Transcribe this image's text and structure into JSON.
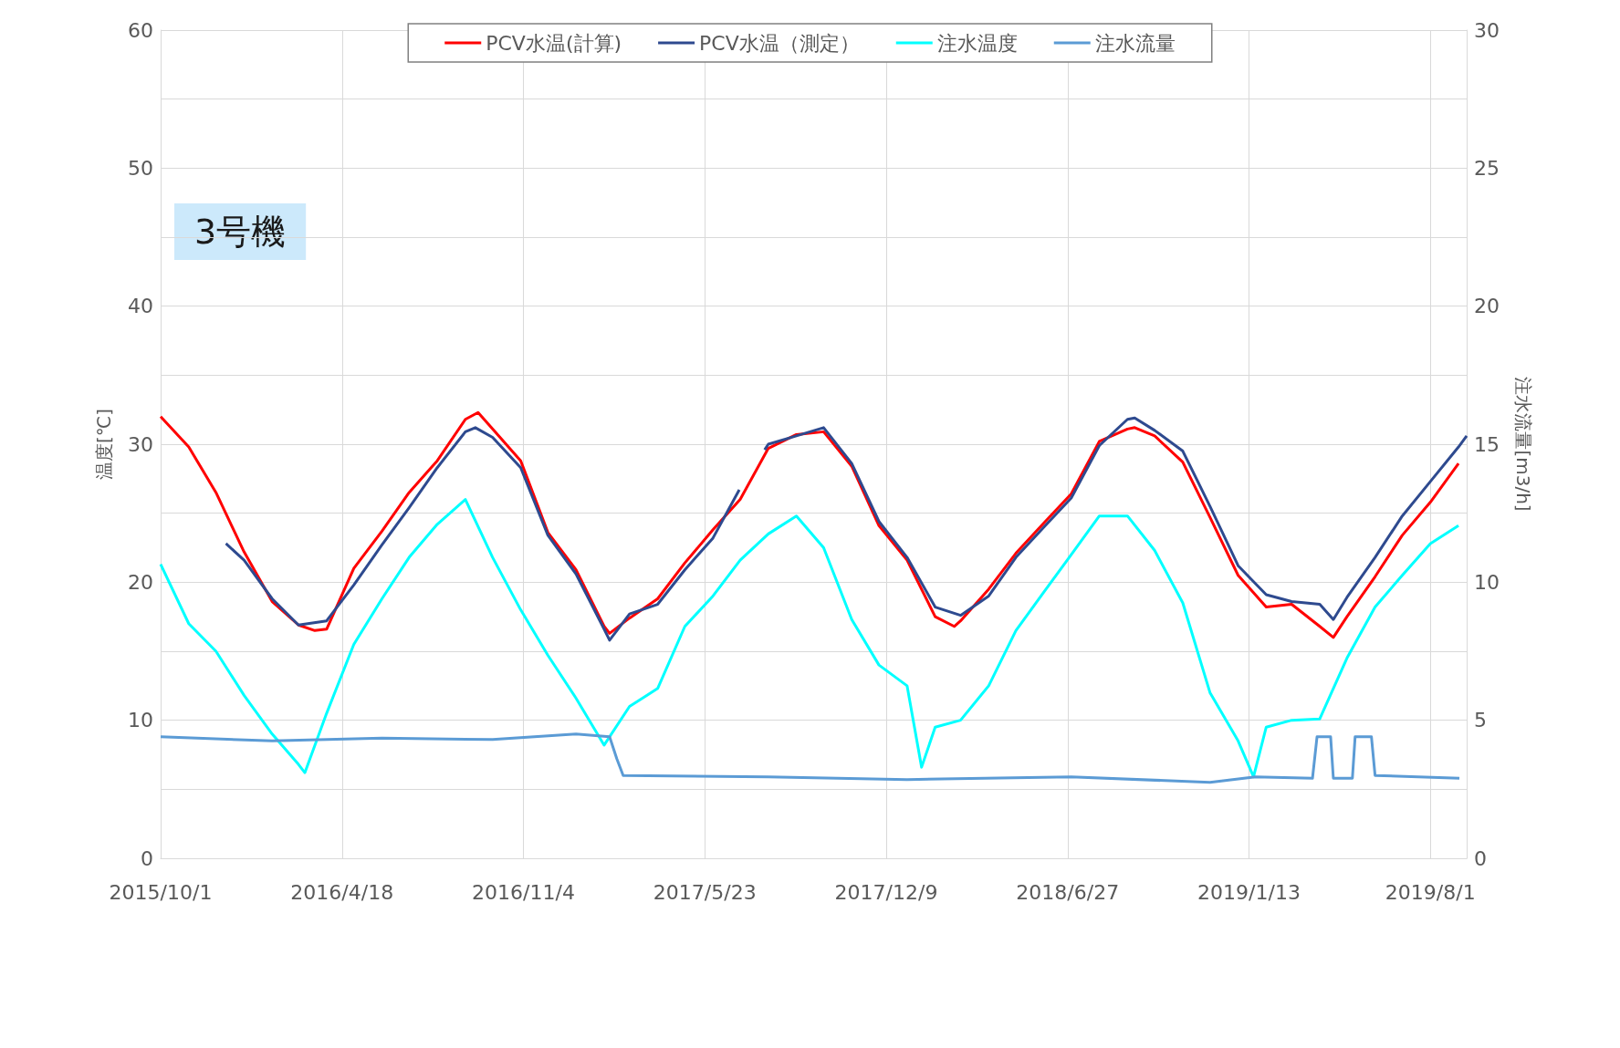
{
  "chart_data": {
    "type": "line",
    "ylabel": "温度[℃]",
    "y2label": "注水流量[m3/h]",
    "annotations": [
      "3号機"
    ],
    "xlim": [
      "2015-10-01",
      "2019-09-10"
    ],
    "xticks": [
      {
        "value": "2015-10-01",
        "label": "2015/10/1"
      },
      {
        "value": "2016-04-18",
        "label": "2016/4/18"
      },
      {
        "value": "2016-11-04",
        "label": "2016/11/4"
      },
      {
        "value": "2017-05-23",
        "label": "2017/5/23"
      },
      {
        "value": "2017-12-09",
        "label": "2017/12/9"
      },
      {
        "value": "2018-06-27",
        "label": "2018/6/27"
      },
      {
        "value": "2019-01-13",
        "label": "2019/1/13"
      },
      {
        "value": "2019-08-01",
        "label": "2019/8/1"
      }
    ],
    "ylim": [
      0,
      60
    ],
    "yticks": [
      0,
      {
        "value": 5,
        "label": null
      },
      10,
      {
        "value": 15,
        "label": null
      },
      20,
      {
        "value": 25,
        "label": null
      },
      30,
      {
        "value": 35,
        "label": null
      },
      40,
      {
        "value": 45,
        "label": null
      },
      50,
      {
        "value": 55,
        "label": null
      },
      60
    ],
    "y2lim": [
      0,
      30
    ],
    "y2ticks": [
      0,
      5,
      10,
      15,
      20,
      25,
      30
    ],
    "grid": true,
    "legend": "top",
    "marker": "none",
    "line_style": "solid",
    "series": [
      {
        "name": "PCV水温(計算)",
        "color": "#ff0000",
        "x": [
          "2015-10-01",
          "2015-11-01",
          "2015-12-01",
          "2016-01-01",
          "2016-02-01",
          "2016-03-01",
          "2016-03-19",
          "2016-04-01",
          "2016-05-01",
          "2016-06-01",
          "2016-07-01",
          "2016-08-01",
          "2016-09-01",
          "2016-09-15",
          "2016-10-01",
          "2016-11-01",
          "2016-12-01",
          "2017-01-01",
          "2017-02-01",
          "2017-02-07",
          "2017-03-01",
          "2017-04-01",
          "2017-05-01",
          "2017-06-01",
          "2017-07-01",
          "2017-08-01",
          "2017-09-01",
          "2017-10-01",
          "2017-11-01",
          "2017-12-01",
          "2018-01-01",
          "2018-02-01",
          "2018-02-22",
          "2018-03-01",
          "2018-04-01",
          "2018-05-01",
          "2018-06-01",
          "2018-07-01",
          "2018-08-01",
          "2018-09-01",
          "2018-09-09",
          "2018-10-01",
          "2018-11-01",
          "2018-12-01",
          "2019-01-01",
          "2019-02-01",
          "2019-03-01",
          "2019-04-01",
          "2019-04-16",
          "2019-05-01",
          "2019-06-01",
          "2019-07-01",
          "2019-08-01",
          "2019-09-01"
        ],
        "values": [
          32.0,
          29.8,
          26.5,
          22.2,
          18.6,
          16.9,
          16.5,
          16.6,
          21.0,
          23.7,
          26.5,
          28.8,
          31.8,
          32.3,
          31.1,
          28.8,
          23.6,
          20.9,
          16.8,
          16.3,
          17.4,
          18.8,
          21.4,
          23.8,
          26.0,
          29.7,
          30.7,
          30.9,
          28.4,
          24.1,
          21.6,
          17.5,
          16.8,
          17.2,
          19.5,
          22.1,
          24.3,
          26.4,
          30.2,
          31.1,
          31.2,
          30.6,
          28.7,
          24.7,
          20.5,
          18.2,
          18.4,
          16.8,
          16.0,
          17.5,
          20.4,
          23.4,
          25.8,
          28.6
        ]
      },
      {
        "name": "PCV水温（測定）",
        "color": "#2e4a8f",
        "x": [
          "2015-12-12",
          "2016-01-01",
          "2016-02-01",
          "2016-03-01",
          "2016-04-01",
          "2016-05-01",
          "2016-06-01",
          "2016-07-01",
          "2016-08-01",
          "2016-09-01",
          "2016-09-12",
          "2016-10-01",
          "2016-11-01",
          "2016-12-01",
          "2017-01-01",
          "2017-02-01",
          "2017-02-07",
          "2017-03-01",
          "2017-04-01",
          "2017-05-01",
          "2017-06-01",
          "2017-06-30",
          "2017-07-10",
          "2017-07-28",
          "2017-08-01",
          "2017-09-01",
          "2017-10-01",
          "2017-11-01",
          "2017-12-01",
          "2018-01-01",
          "2018-02-01",
          "2018-03-01",
          "2018-04-01",
          "2018-05-01",
          "2018-06-01",
          "2018-07-01",
          "2018-08-01",
          "2018-09-01",
          "2018-09-09",
          "2018-10-01",
          "2018-11-01",
          "2018-12-01",
          "2019-01-01",
          "2019-02-01",
          "2019-03-01",
          "2019-04-01",
          "2019-04-16",
          "2019-05-01",
          "2019-06-01",
          "2019-07-01",
          "2019-08-01",
          "2019-09-01",
          "2019-09-10"
        ],
        "values": [
          22.8,
          21.6,
          18.8,
          16.9,
          17.2,
          19.8,
          22.7,
          25.4,
          28.3,
          30.9,
          31.2,
          30.5,
          28.3,
          23.4,
          20.6,
          16.6,
          15.8,
          17.7,
          18.4,
          20.9,
          23.2,
          26.7,
          null,
          29.6,
          30.0,
          30.6,
          31.2,
          28.6,
          24.4,
          21.8,
          18.2,
          17.6,
          19.0,
          21.8,
          24.0,
          26.1,
          29.9,
          31.8,
          31.9,
          31.0,
          29.5,
          25.5,
          21.2,
          19.1,
          18.6,
          18.4,
          17.3,
          18.9,
          21.8,
          24.8,
          27.3,
          29.8,
          30.6
        ]
      },
      {
        "name": "注水温度",
        "color": "#00ffff",
        "x": [
          "2015-10-01",
          "2015-11-01",
          "2015-12-01",
          "2016-01-01",
          "2016-02-01",
          "2016-03-01",
          "2016-03-08",
          "2016-04-01",
          "2016-05-01",
          "2016-06-01",
          "2016-07-01",
          "2016-08-01",
          "2016-09-01",
          "2016-10-01",
          "2016-11-01",
          "2016-12-01",
          "2017-01-01",
          "2017-02-01",
          "2017-03-01",
          "2017-04-01",
          "2017-05-01",
          "2017-06-01",
          "2017-07-01",
          "2017-08-01",
          "2017-09-01",
          "2017-10-01",
          "2017-11-01",
          "2017-12-01",
          "2018-01-01",
          "2018-01-17",
          "2018-02-01",
          "2018-03-01",
          "2018-04-01",
          "2018-05-01",
          "2018-06-01",
          "2018-07-01",
          "2018-08-01",
          "2018-09-01",
          "2018-10-01",
          "2018-11-01",
          "2018-12-01",
          "2019-01-01",
          "2019-01-18",
          "2019-02-01",
          "2019-03-01",
          "2019-04-01",
          "2019-05-01",
          "2019-06-01",
          "2019-07-01",
          "2019-08-01",
          "2019-09-01"
        ],
        "values": [
          21.3,
          17.0,
          15.0,
          11.8,
          9.0,
          6.8,
          6.2,
          10.5,
          15.5,
          18.8,
          21.8,
          24.2,
          26.0,
          21.8,
          18.0,
          14.7,
          11.6,
          8.2,
          11.0,
          12.3,
          16.8,
          19.0,
          21.6,
          23.5,
          24.8,
          22.5,
          17.3,
          14.0,
          12.5,
          6.6,
          9.5,
          10.0,
          12.5,
          16.5,
          19.3,
          22.0,
          24.8,
          24.8,
          22.3,
          18.5,
          12.0,
          8.5,
          5.9,
          9.5,
          10.0,
          10.1,
          14.5,
          18.2,
          20.5,
          22.8,
          24.1
        ]
      },
      {
        "name": "注水流量",
        "color": "#5b9bd5",
        "axis": "y2",
        "x": [
          "2015-10-01",
          "2016-02-01",
          "2016-06-01",
          "2016-10-01",
          "2017-01-01",
          "2017-02-07",
          "2017-02-15",
          "2017-02-22",
          "2017-08-01",
          "2018-01-01",
          "2018-07-01",
          "2018-12-01",
          "2019-01-20",
          "2019-03-24",
          "2019-03-29",
          "2019-04-13",
          "2019-04-16",
          "2019-05-07",
          "2019-05-10",
          "2019-05-28",
          "2019-06-01",
          "2019-09-02"
        ],
        "values": [
          4.4,
          4.25,
          4.35,
          4.3,
          4.5,
          4.4,
          3.6,
          3.0,
          2.95,
          2.85,
          2.95,
          2.75,
          2.95,
          2.9,
          4.4,
          4.4,
          2.9,
          2.9,
          4.4,
          4.4,
          3.0,
          2.9
        ]
      }
    ]
  }
}
